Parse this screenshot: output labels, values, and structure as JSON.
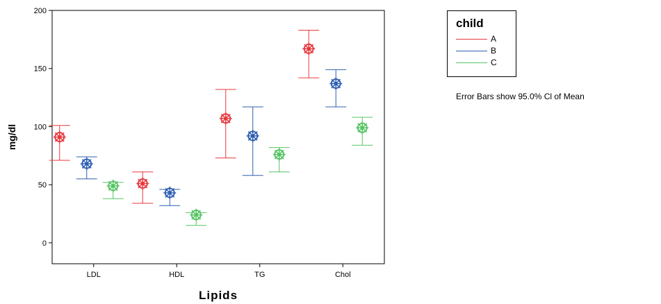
{
  "chart_data": {
    "type": "errorbar",
    "xlabel": "Lipids",
    "ylabel": "mg/dl",
    "categories": [
      "LDL",
      "HDL",
      "TG",
      "Chol"
    ],
    "ylim": [
      -18,
      200
    ],
    "yticks": [
      0,
      50,
      100,
      150,
      200
    ],
    "grid": false,
    "legend_title": "child",
    "legend_position": "right",
    "series": [
      {
        "name": "A",
        "color": "#e8383d",
        "mean": [
          91,
          51,
          107,
          167
        ],
        "lower": [
          71,
          34,
          73,
          142
        ],
        "upper": [
          101,
          61,
          132,
          183
        ]
      },
      {
        "name": "B",
        "color": "#2f5fb3",
        "mean": [
          68,
          43,
          92,
          137
        ],
        "lower": [
          55,
          32,
          58,
          117
        ],
        "upper": [
          74,
          46,
          117,
          149
        ]
      },
      {
        "name": "C",
        "color": "#55c463",
        "mean": [
          49,
          24,
          76,
          99
        ],
        "lower": [
          38,
          15,
          61,
          84
        ],
        "upper": [
          52,
          26,
          82,
          108
        ]
      }
    ],
    "note": "Error Bars show 95.0% Cl of Mean"
  }
}
